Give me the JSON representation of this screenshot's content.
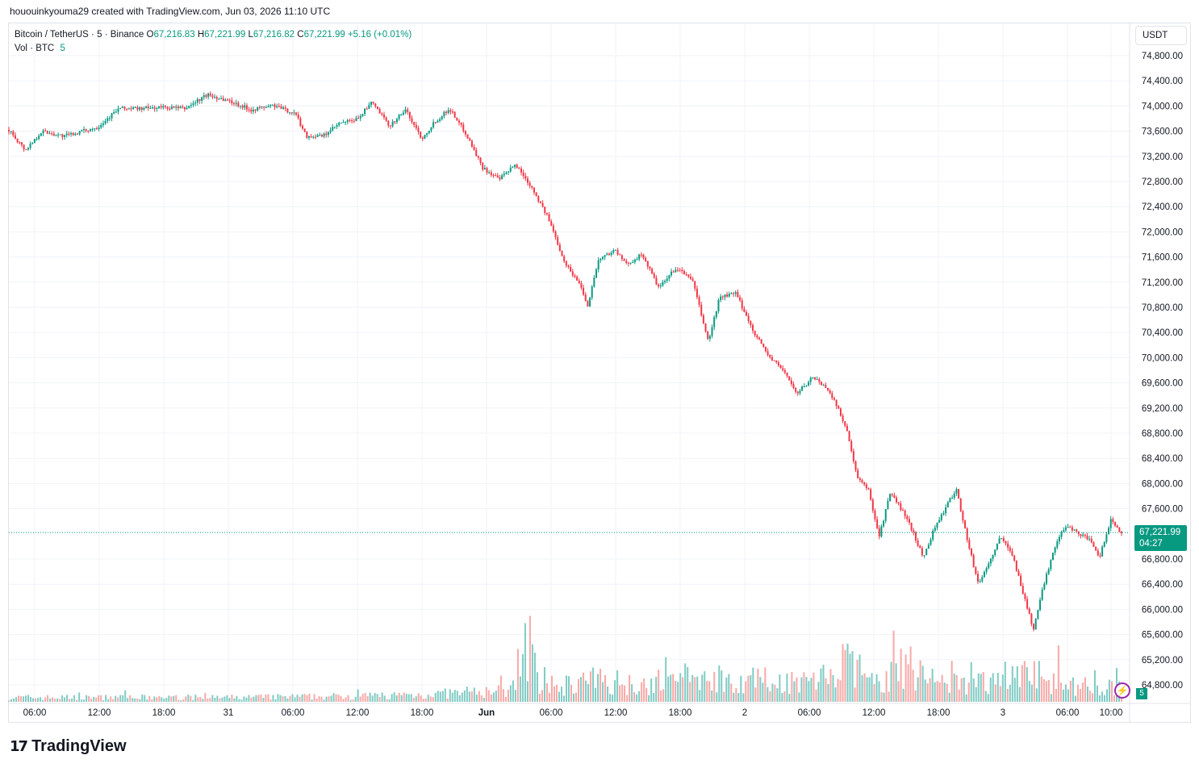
{
  "header": {
    "attribution": "hououinkyouma29 created with TradingView.com, Jun 03, 2026 11:10 UTC"
  },
  "legend": {
    "symbol": "Bitcoin / TetherUS",
    "interval": "5",
    "exchange": "Binance",
    "open_label": "O",
    "open": "67,216.83",
    "high_label": "H",
    "high": "67,221.99",
    "low_label": "L",
    "low": "67,216.82",
    "close_label": "C",
    "close": "67,221.99",
    "change": "+5.16 (+0.01%)",
    "vol_label": "Vol",
    "vol_unit": "BTC",
    "vol_value": "5"
  },
  "currency_button": "USDT",
  "price_tag": {
    "price": "67,221.99",
    "countdown": "04:27"
  },
  "volume_badge": "5",
  "brand": {
    "logo": "17",
    "name": "TradingView"
  },
  "colors": {
    "up": "#089981",
    "down": "#f23645",
    "up_vol": "#80cbc4",
    "down_vol": "#f7a9a7",
    "grid": "#f0f3fa"
  },
  "chart_data": {
    "type": "candlestick",
    "ylim": [
      64600,
      75000
    ],
    "y_ticks": [
      "74,800.00",
      "74,400.00",
      "74,000.00",
      "73,600.00",
      "73,200.00",
      "72,800.00",
      "72,400.00",
      "72,000.00",
      "71,600.00",
      "71,200.00",
      "70,800.00",
      "70,400.00",
      "70,000.00",
      "69,600.00",
      "69,200.00",
      "68,800.00",
      "68,400.00",
      "68,000.00",
      "67,600.00",
      "66,800.00",
      "66,400.00",
      "66,000.00",
      "65,600.00",
      "65,200.00",
      "64,800.00"
    ],
    "x_ticks": [
      "06:00",
      "12:00",
      "18:00",
      "31",
      "06:00",
      "12:00",
      "18:00",
      "Jun",
      "06:00",
      "12:00",
      "18:00",
      "2",
      "06:00",
      "12:00",
      "18:00",
      "3",
      "06:00",
      "10:00"
    ],
    "last_price": 67221.99,
    "price_path": [
      [
        0,
        73620
      ],
      [
        3,
        73300
      ],
      [
        6,
        73600
      ],
      [
        10,
        73520
      ],
      [
        16,
        73660
      ],
      [
        20,
        73960
      ],
      [
        24,
        73960
      ],
      [
        28,
        73980
      ],
      [
        32,
        73960
      ],
      [
        36,
        74180
      ],
      [
        40,
        74080
      ],
      [
        44,
        73940
      ],
      [
        48,
        74010
      ],
      [
        52,
        73880
      ],
      [
        54,
        73520
      ],
      [
        57,
        73520
      ],
      [
        60,
        73720
      ],
      [
        63,
        73780
      ],
      [
        66,
        74060
      ],
      [
        69,
        73680
      ],
      [
        72,
        73940
      ],
      [
        75,
        73480
      ],
      [
        77,
        73720
      ],
      [
        80,
        73960
      ],
      [
        83,
        73560
      ],
      [
        86,
        73020
      ],
      [
        89,
        72830
      ],
      [
        92,
        73070
      ],
      [
        95,
        72700
      ],
      [
        98,
        72200
      ],
      [
        101,
        71500
      ],
      [
        104,
        71120
      ],
      [
        105,
        70800
      ],
      [
        107,
        71550
      ],
      [
        110,
        71720
      ],
      [
        112,
        71480
      ],
      [
        115,
        71640
      ],
      [
        118,
        71100
      ],
      [
        121,
        71420
      ],
      [
        124,
        71260
      ],
      [
        127,
        70250
      ],
      [
        129,
        70960
      ],
      [
        132,
        71020
      ],
      [
        135,
        70450
      ],
      [
        138,
        70020
      ],
      [
        141,
        69760
      ],
      [
        143,
        69420
      ],
      [
        146,
        69700
      ],
      [
        149,
        69470
      ],
      [
        152,
        68900
      ],
      [
        154,
        68080
      ],
      [
        156,
        67920
      ],
      [
        158,
        67160
      ],
      [
        160,
        67850
      ],
      [
        162,
        67600
      ],
      [
        164,
        67260
      ],
      [
        166,
        66820
      ],
      [
        168,
        67290
      ],
      [
        170,
        67600
      ],
      [
        172,
        67920
      ],
      [
        174,
        67100
      ],
      [
        176,
        66400
      ],
      [
        178,
        66750
      ],
      [
        180,
        67140
      ],
      [
        182,
        66930
      ],
      [
        184,
        66300
      ],
      [
        186,
        65680
      ],
      [
        188,
        66440
      ],
      [
        190,
        67030
      ],
      [
        192,
        67350
      ],
      [
        194,
        67220
      ],
      [
        196,
        67120
      ],
      [
        198,
        66820
      ],
      [
        200,
        67420
      ],
      [
        202,
        67222
      ]
    ],
    "volume_path": [
      [
        0,
        12
      ],
      [
        40,
        12
      ],
      [
        60,
        15
      ],
      [
        75,
        20
      ],
      [
        90,
        30
      ],
      [
        95,
        190
      ],
      [
        96,
        40
      ],
      [
        100,
        45
      ],
      [
        107,
        60
      ],
      [
        115,
        50
      ],
      [
        125,
        70
      ],
      [
        135,
        60
      ],
      [
        145,
        55
      ],
      [
        150,
        85
      ],
      [
        153,
        110
      ],
      [
        156,
        50
      ],
      [
        160,
        70
      ],
      [
        163,
        100
      ],
      [
        166,
        70
      ],
      [
        170,
        55
      ],
      [
        175,
        45
      ],
      [
        180,
        75
      ],
      [
        185,
        80
      ],
      [
        190,
        60
      ],
      [
        195,
        45
      ],
      [
        202,
        35
      ]
    ]
  }
}
